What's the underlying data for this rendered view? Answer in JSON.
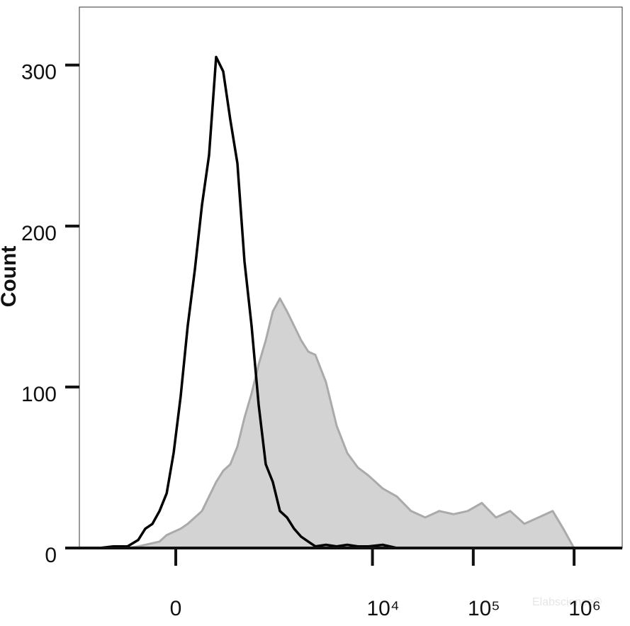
{
  "chart_data": {
    "type": "area",
    "y_label": "Count",
    "watermark": "Elabscience®",
    "xscale": "biexponential",
    "xlim": [
      -1000,
      3000000
    ],
    "xticks": [
      0,
      {
        "value": 10000,
        "label": "10⁴"
      },
      {
        "value": 100000,
        "label": "10⁵"
      },
      {
        "value": 1000000,
        "label": "10⁶"
      }
    ],
    "ylim": [
      0,
      336
    ],
    "yticks": [
      0,
      100,
      200,
      300
    ],
    "x": [
      -1000,
      -620,
      -440,
      -300,
      -216,
      -169,
      -125,
      -85,
      -47,
      -11,
      25,
      62,
      101,
      142,
      187,
      237,
      293,
      357,
      430,
      515,
      613,
      727,
      860,
      1016,
      1198,
      1411,
      1663,
      1958,
      2303,
      2710,
      3456,
      4408,
      5620,
      7166,
      9135,
      12625,
      17450,
      24125,
      33331,
      46077,
      63683,
      88032,
      121632,
      168112,
      232400,
      321216,
      443968,
      613536,
      781760,
      996576,
      1377600,
      2994880
    ],
    "series": [
      {
        "color": "#aaaaaa",
        "fill": "#d3d3d3",
        "values": [
          0,
          0,
          0,
          0,
          1,
          2,
          3,
          4,
          8,
          10,
          12,
          15,
          19,
          23,
          32,
          41,
          48,
          52,
          63,
          81,
          96,
          114,
          129,
          147,
          155,
          147,
          138,
          129,
          122,
          120,
          103,
          76,
          59,
          50,
          45,
          37,
          32,
          23,
          19,
          23,
          21,
          23,
          28,
          19,
          23,
          15,
          19,
          23,
          12,
          0,
          0,
          0
        ]
      },
      {
        "color": "#000000",
        "values": [
          0,
          0,
          1,
          1,
          5,
          12,
          15,
          23,
          34,
          59,
          94,
          138,
          173,
          213,
          244,
          305,
          296,
          266,
          239,
          178,
          138,
          89,
          52,
          41,
          23,
          19,
          12,
          7,
          4,
          1,
          2,
          1,
          2,
          1,
          1,
          2,
          0,
          0,
          0,
          0,
          0,
          0,
          0,
          0,
          0,
          0,
          0,
          0,
          0,
          0,
          0,
          0
        ]
      }
    ]
  }
}
